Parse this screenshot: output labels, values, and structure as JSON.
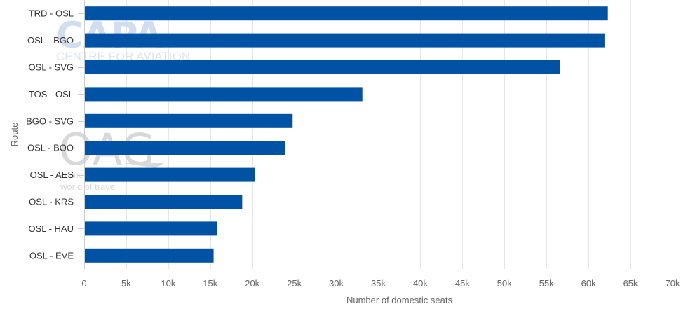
{
  "chart_data": {
    "type": "bar",
    "orientation": "horizontal",
    "categories": [
      "TRD - OSL",
      "OSL - BGO",
      "OSL - SVG",
      "TOS - OSL",
      "BGO - SVG",
      "OSL - BOO",
      "OSL - AES",
      "OSL - KRS",
      "OSL - HAU",
      "OSL - EVE"
    ],
    "values": [
      62300,
      61900,
      56600,
      33100,
      24800,
      23900,
      20300,
      18800,
      15800,
      15400
    ],
    "xlabel": "Number of domestic seats",
    "ylabel": "Route",
    "xlim": [
      0,
      70000
    ],
    "xticks": [
      0,
      5000,
      10000,
      15000,
      20000,
      25000,
      30000,
      35000,
      40000,
      45000,
      50000,
      55000,
      60000,
      65000,
      70000
    ],
    "xtick_labels": [
      "0",
      "5k",
      "10k",
      "15k",
      "20k",
      "25k",
      "30k",
      "35k",
      "40k",
      "45k",
      "50k",
      "55k",
      "60k",
      "65k",
      "70k"
    ],
    "grid": "vertical",
    "bar_color": "#0052a5"
  },
  "watermarks": {
    "capa_logo": "CAPA",
    "capa_subtitle": "CENTRE FOR AVIATION",
    "oag_logo": "OAG",
    "oag_tagline_1": "conne",
    "oag_tagline_2": "world of travel"
  }
}
